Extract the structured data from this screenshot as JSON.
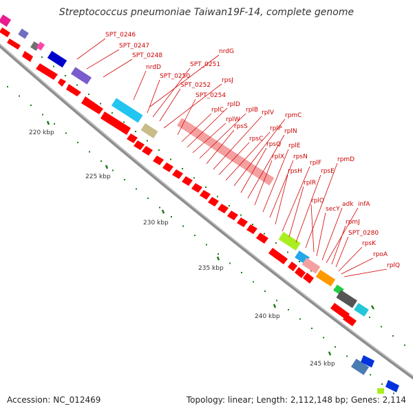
{
  "title": "Streptococcus pneumoniae Taiwan19F-14, complete genome",
  "footer": {
    "accession": "Accession: NC_012469",
    "topology": "Topology: linear; Length: 2,112,148 bp; Genes: 2,114"
  },
  "colors": {
    "backbone": "#8e8e8e",
    "tick_dots": "#1a7a1a",
    "label_line": "#d40000",
    "label_text": "#cc0000",
    "gene_default": "#ff0000",
    "gene_ribosomal": "#f4a0a0"
  },
  "scale_labels": [
    "220 kbp",
    "225 kbp",
    "230 kbp",
    "235 kbp",
    "240 kbp",
    "245 kbp"
  ],
  "gene_labels": [
    "SPT_0246",
    "SPT_0247",
    "SPT_0248",
    "nrdD",
    "nrdG",
    "SPT_0250",
    "SPT_0251",
    "SPT_0252",
    "rpsJ",
    "SPT_0254",
    "rplC",
    "rplD",
    "rplW",
    "rplB",
    "rpsS",
    "rplV",
    "rpsC",
    "rplP",
    "rpmC",
    "rpsQ",
    "rplN",
    "rplX",
    "rplE",
    "rpsN",
    "rpsH",
    "rplF",
    "rplR",
    "rpsE",
    "rpmD",
    "rplO",
    "secY",
    "adk",
    "infA",
    "rpmJ",
    "SPT_0280",
    "rpsK",
    "rpoA",
    "rplQ"
  ]
}
